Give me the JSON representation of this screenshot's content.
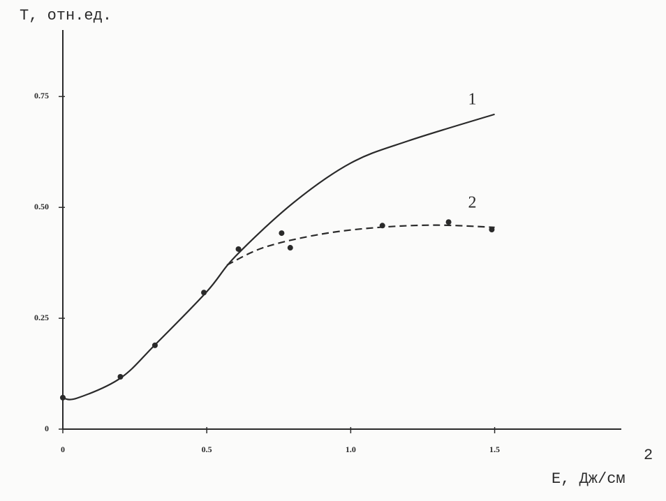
{
  "chart_data": {
    "type": "line",
    "y_label": "T, отн.ед.",
    "x_label": "E, Дж/см",
    "x_label_sup": "2",
    "xlim": [
      0,
      1.94
    ],
    "ylim": [
      0,
      0.9
    ],
    "xticks": [
      0,
      0.5,
      {
        "value": 1,
        "label": "1.0"
      },
      1.5
    ],
    "yticks": [
      0,
      0.25,
      {
        "value": 0.5,
        "label": "0.50"
      },
      0.75
    ],
    "color": "#2a2a2a",
    "series": [
      {
        "name": "1",
        "dash": false,
        "x": [
          0,
          0.05,
          0.2,
          0.32,
          0.5,
          0.6,
          0.8,
          1.0,
          1.2,
          1.5
        ],
        "values": [
          0.07,
          0.07,
          0.115,
          0.19,
          0.31,
          0.39,
          0.51,
          0.6,
          0.65,
          0.71
        ]
      },
      {
        "name": "2",
        "dash": true,
        "x": [
          0.57,
          0.7,
          0.9,
          1.1,
          1.3,
          1.5
        ],
        "values": [
          0.37,
          0.41,
          0.44,
          0.455,
          0.46,
          0.455
        ]
      }
    ],
    "points": {
      "x": [
        0,
        0.2,
        0.32,
        0.49,
        0.61,
        0.76,
        0.79,
        1.11,
        1.34,
        1.49
      ],
      "values": [
        0.071,
        0.118,
        0.189,
        0.308,
        0.406,
        0.442,
        0.409,
        0.459,
        0.467,
        0.45
      ]
    }
  }
}
